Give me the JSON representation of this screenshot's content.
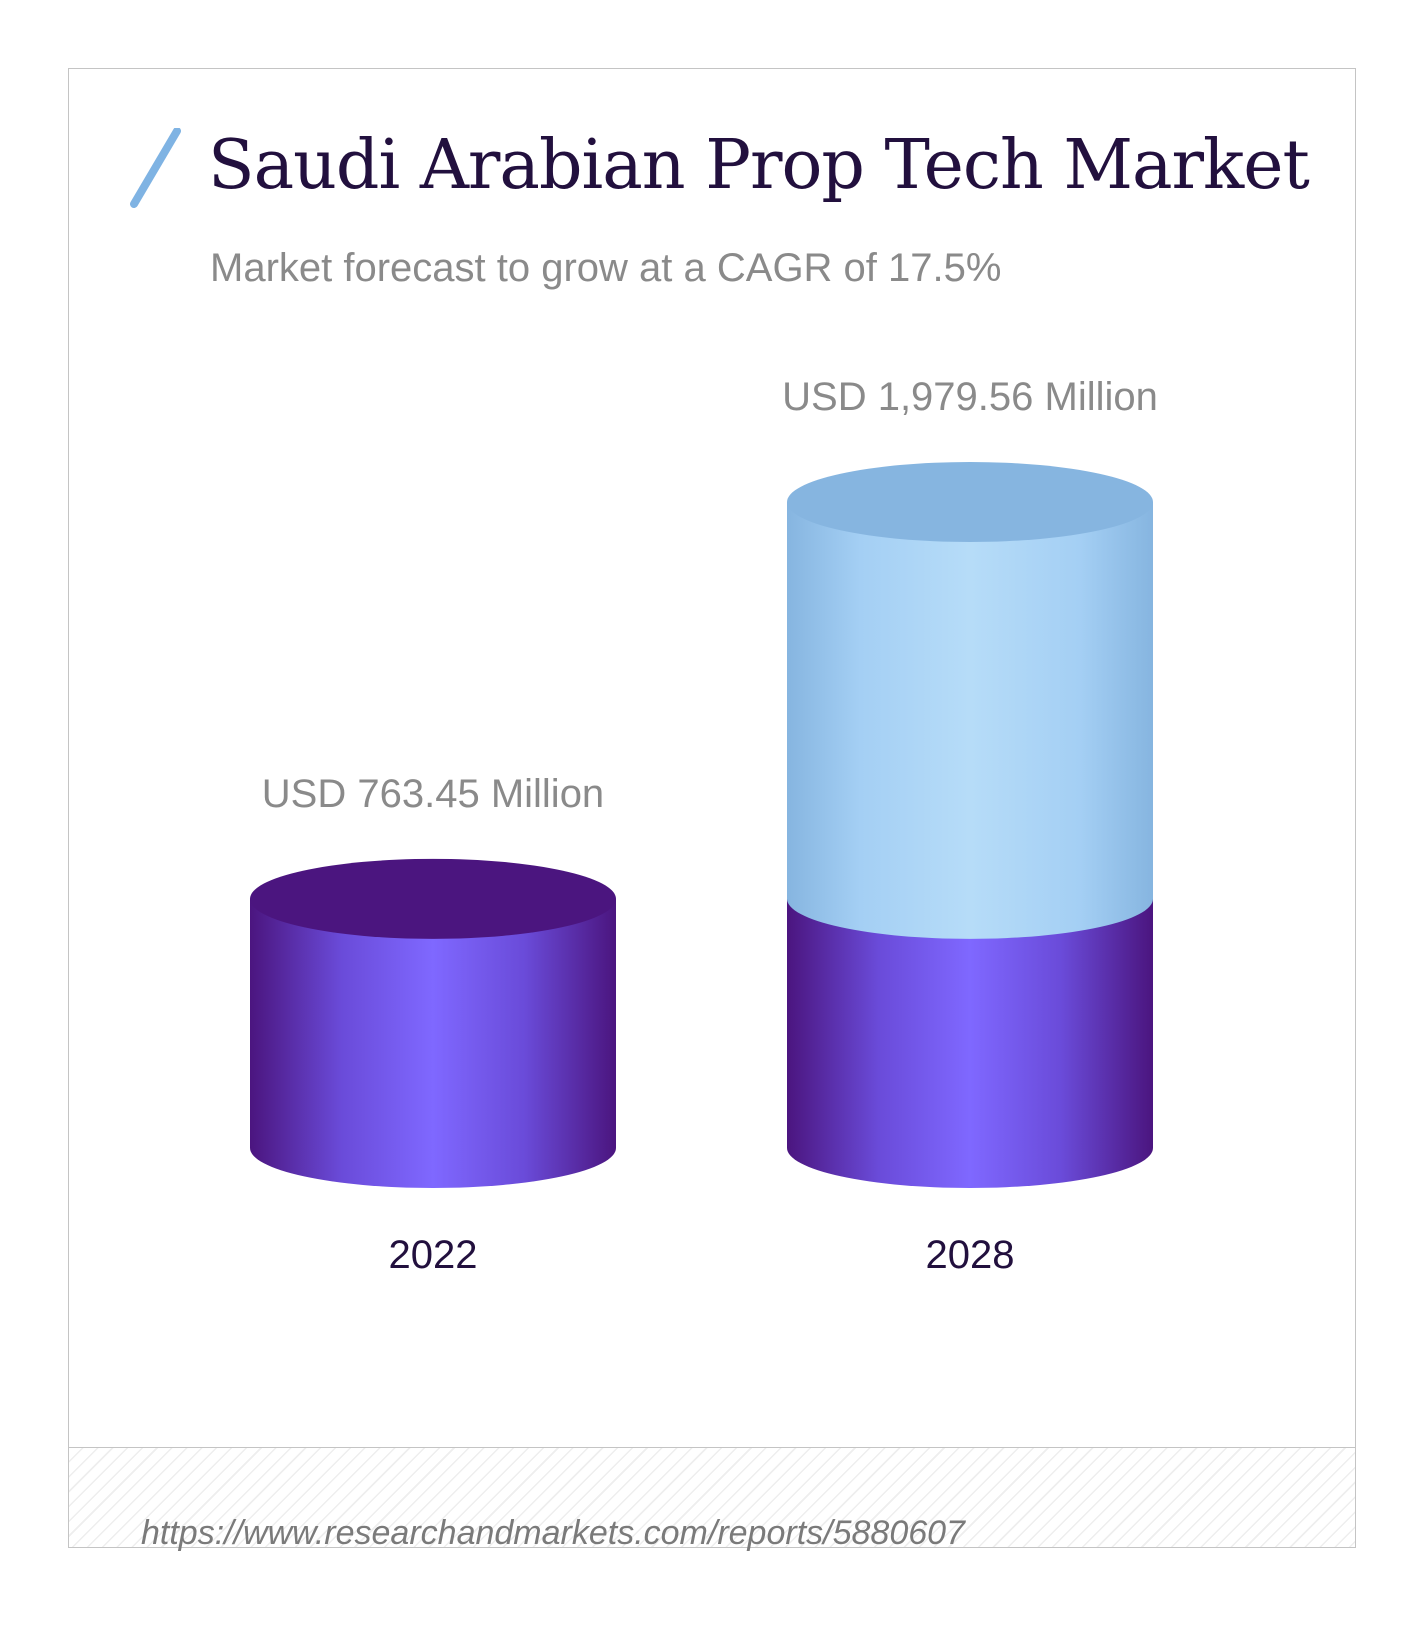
{
  "header": {
    "title": "Saudi Arabian Prop Tech Market",
    "subtitle": "Market forecast to grow at a CAGR of 17.5%"
  },
  "footer": {
    "source": "https://www.researchandmarkets.com/reports/5880607"
  },
  "colors": {
    "title": "#22103e",
    "muted_text": "#8a8a8a",
    "accent_slash": "#7fb3e3",
    "base_purple_center": "#7f68ff",
    "base_purple_edge": "#4b157f",
    "growth_blue_center": "#b6dcf8",
    "growth_blue_edge": "#86b5e0"
  },
  "chart_data": {
    "type": "bar",
    "style": "3d-cylinder",
    "categories": [
      "2022",
      "2028"
    ],
    "values": [
      763.45,
      1979.56
    ],
    "value_labels": [
      "USD 763.45 Million",
      "USD 1,979.56 Million"
    ],
    "unit": "USD Million",
    "title": "Saudi Arabian Prop Tech Market",
    "subtitle": "Market forecast to grow at a CAGR of 17.5%",
    "cagr": "17.5%",
    "ylim": [
      0,
      1979.56
    ],
    "grid": false,
    "legend": "none"
  }
}
